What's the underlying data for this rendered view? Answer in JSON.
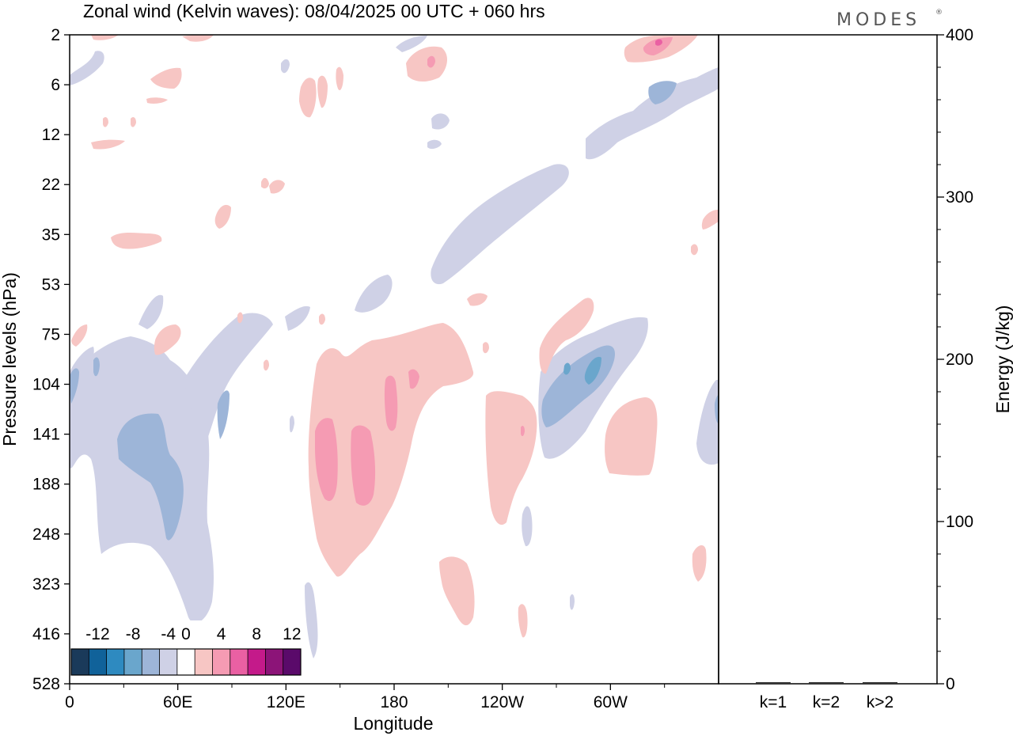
{
  "header": {
    "title": "Zonal wind (Kelvin waves):  08/04/2025  00 UTC  + 060 hrs",
    "brand": "MODES",
    "brand_mark": "®"
  },
  "chart_data": [
    {
      "type": "heatmap",
      "title": "Zonal wind (Kelvin waves):  08/04/2025  00 UTC  + 060 hrs",
      "xlabel": "Longitude",
      "ylabel": "Pressure levels (hPa)",
      "x_ticks": [
        "0",
        "60E",
        "120E",
        "180",
        "120W",
        "60W"
      ],
      "x_tick_degrees": [
        0,
        60,
        120,
        180,
        240,
        300
      ],
      "xlim": [
        0,
        360
      ],
      "y_ticks": [
        "2",
        "6",
        "12",
        "22",
        "35",
        "53",
        "75",
        "104",
        "141",
        "188",
        "248",
        "323",
        "416",
        "528"
      ],
      "y_reversed": true,
      "colorbar": {
        "labels": [
          "-12",
          "-8",
          "-4",
          "0",
          "4",
          "8",
          "12"
        ],
        "levels": [
          -14,
          -12,
          -10,
          -8,
          -6,
          -4,
          -2,
          2,
          4,
          6,
          8,
          10,
          12,
          14
        ],
        "colors": [
          "#1a3a5a",
          "#10629a",
          "#2e8ac0",
          "#6aa6cc",
          "#9db5d8",
          "#cfd1e6",
          "#ffffff",
          "#f7c6c4",
          "#f59bb3",
          "#ea60a3",
          "#c41a8a",
          "#8c1478",
          "#5a0a6a"
        ]
      },
      "features": [
        {
          "sign": "negative",
          "value": -6,
          "lon": 55,
          "lev": "141-248"
        },
        {
          "sign": "negative",
          "value": -6,
          "lon": 285,
          "lev": "104-141"
        },
        {
          "sign": "negative",
          "value": -8,
          "lon": 290,
          "lev": "104"
        },
        {
          "sign": "negative",
          "value": -6,
          "lon": 330,
          "lev": "6"
        },
        {
          "sign": "positive",
          "value": 6,
          "lon": 140,
          "lev": "141-188"
        },
        {
          "sign": "positive",
          "value": 6,
          "lon": 162,
          "lev": "141-188"
        },
        {
          "sign": "positive",
          "value": 10,
          "lon": 330,
          "lev": "2"
        },
        {
          "sign": "positive",
          "value": 6,
          "lon": 200,
          "lev": "6"
        }
      ]
    },
    {
      "type": "bar",
      "ylabel": "Energy (J/kg)",
      "categories": [
        "k=1",
        "k=2",
        "k>2"
      ],
      "values": [
        1,
        1,
        1
      ],
      "ylim": [
        0,
        400
      ],
      "y_ticks": [
        "0",
        "100",
        "200",
        "300",
        "400"
      ]
    }
  ],
  "colors": {
    "neg_light": "#cfd1e6",
    "neg_mid": "#9db5d8",
    "neg_dark": "#6aa6cc",
    "pos_light": "#f7c6c4",
    "pos_mid": "#f59bb3",
    "pos_dark": "#ea60a3"
  }
}
